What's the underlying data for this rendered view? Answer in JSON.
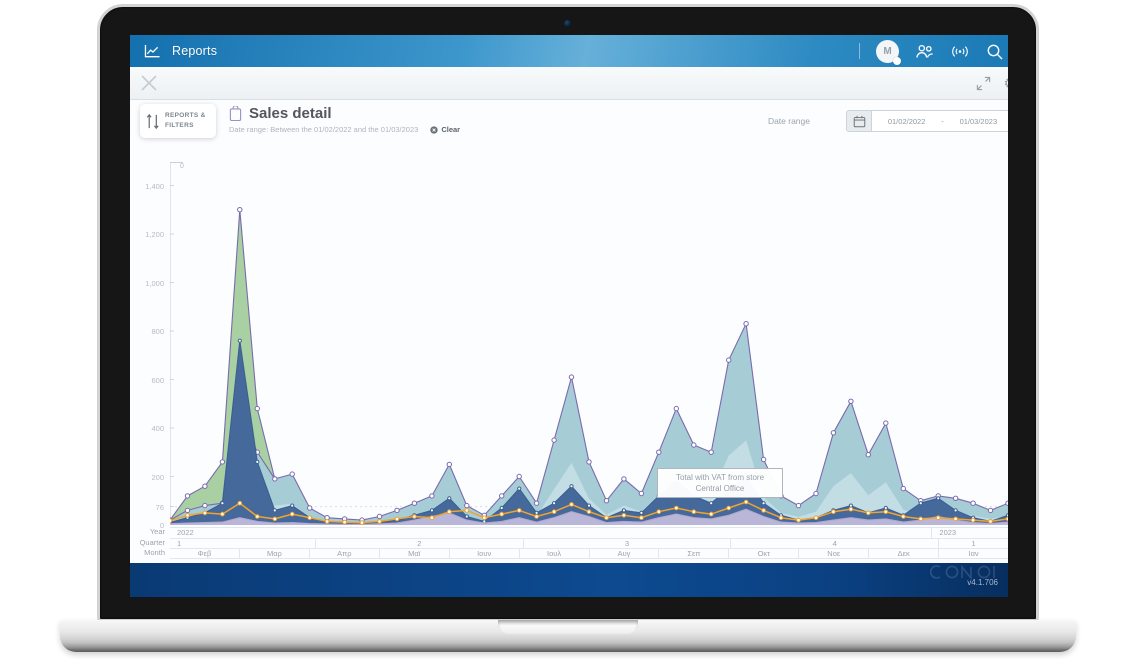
{
  "header": {
    "app_title": "Reports",
    "avatar_initial": "M"
  },
  "panel": {
    "filters_button": {
      "line1": "REPORTS &",
      "line2": "FILTERS"
    },
    "title": "Sales detail",
    "subtitle": "Date range: Between the 01/02/2022 and the 01/03/2023",
    "clear_label": "Clear",
    "date_range_label": "Date range",
    "date_from": "01/02/2022",
    "date_separator": "-",
    "date_to": "01/03/2023"
  },
  "tooltip": {
    "line1": "Total with VAT from store",
    "line2": "Central Office"
  },
  "footer": {
    "version": "v4.1.706"
  },
  "colors": {
    "header_blue": "#2d8ac2",
    "footer_blue": "#0d4a90",
    "accent_purple": "#7a6aae",
    "area_green": "#a8d0a2",
    "area_teal": "#a6cdd6",
    "area_blue": "#46699b",
    "area_lavender": "#c6bfdf",
    "line_orange": "#f3a32b"
  },
  "chart_data": {
    "type": "area",
    "title": "Sales detail",
    "ylim": [
      0,
      1505
    ],
    "grid": "dashed reference line at 76 only",
    "legend": "none (tooltip identifies series: Total with VAT from store Central Office)",
    "y_axis": {
      "top_label": "0",
      "dashed_ref": 76,
      "ticks": [
        {
          "v": 1400,
          "label": "1,400"
        },
        {
          "v": 1200,
          "label": "1,200"
        },
        {
          "v": 1000,
          "label": "1,000"
        },
        {
          "v": 800,
          "label": "800"
        },
        {
          "v": 600,
          "label": "600"
        },
        {
          "v": 400,
          "label": "400"
        },
        {
          "v": 200,
          "label": "200"
        },
        {
          "v": 76,
          "label": "76"
        },
        {
          "v": 0,
          "label": "0"
        }
      ]
    },
    "x_axis": {
      "row_titles": [
        "Year",
        "Quarter",
        "Month"
      ],
      "year_cells": [
        {
          "label": "2022",
          "span": 11,
          "align": "left"
        },
        {
          "label": "2023",
          "span": 1,
          "align": "left"
        }
      ],
      "quarter_cells": [
        {
          "label": "1",
          "span": 2,
          "align": "left"
        },
        {
          "label": "2",
          "span": 3
        },
        {
          "label": "3",
          "span": 3
        },
        {
          "label": "4",
          "span": 3
        },
        {
          "label": "1",
          "span": 1
        }
      ],
      "month_labels": [
        "Φεβ",
        "Μαρ",
        "Απρ",
        "Μαϊ",
        "Ιουν",
        "Ιουλ",
        "Αυγ",
        "Σεπ",
        "Οκτ",
        "Νοε",
        "Δεκ",
        "Ιαν"
      ]
    },
    "series": [
      {
        "id": "area-green",
        "type": "area",
        "fill": "#a8d0a2",
        "stroke": "#7a6aae",
        "markers": 6,
        "values": [
          20,
          120,
          160,
          260,
          1300,
          480,
          190,
          172,
          57,
          25,
          21,
          16,
          29,
          49,
          74,
          98,
          205,
          66,
          33,
          98,
          164,
          74,
          287,
          500,
          213,
          82,
          156,
          107,
          246,
          394,
          271,
          246,
          558,
          681,
          221,
          98,
          66,
          107,
          312,
          418,
          238,
          344,
          123,
          82,
          98,
          90,
          74,
          49,
          74
        ]
      },
      {
        "id": "area-teal",
        "type": "area",
        "fill": "#a6cdd6",
        "stroke": "#7a6aae",
        "markers": "all",
        "values": [
          20,
          60,
          80,
          90,
          460,
          300,
          190,
          210,
          70,
          30,
          25,
          20,
          35,
          60,
          90,
          120,
          250,
          80,
          40,
          120,
          200,
          90,
          350,
          610,
          260,
          100,
          190,
          130,
          300,
          480,
          330,
          300,
          680,
          830,
          270,
          120,
          80,
          130,
          380,
          510,
          290,
          420,
          150,
          100,
          120,
          110,
          90,
          60,
          90
        ]
      },
      {
        "id": "area-light-inner",
        "type": "area",
        "fill": "#c8dfe7",
        "opacity": 0.85,
        "values": [
          8,
          25,
          34,
          38,
          193,
          126,
          80,
          88,
          29,
          13,
          11,
          8,
          15,
          25,
          38,
          50,
          105,
          34,
          17,
          50,
          84,
          38,
          147,
          256,
          109,
          42,
          80,
          55,
          126,
          202,
          139,
          126,
          286,
          349,
          113,
          50,
          34,
          55,
          160,
          214,
          122,
          176,
          63,
          42,
          50,
          46,
          38,
          25,
          38
        ]
      },
      {
        "id": "area-blue",
        "type": "area",
        "fill": "#46699b",
        "stroke": "#3c5f93",
        "markers": "all",
        "values": [
          10,
          30,
          50,
          90,
          760,
          260,
          60,
          80,
          30,
          12,
          8,
          6,
          12,
          20,
          40,
          60,
          110,
          35,
          15,
          70,
          150,
          50,
          90,
          160,
          80,
          30,
          60,
          50,
          120,
          185,
          120,
          90,
          150,
          200,
          90,
          40,
          20,
          30,
          60,
          80,
          50,
          70,
          40,
          90,
          110,
          60,
          30,
          15,
          40
        ]
      },
      {
        "id": "area-lavender",
        "type": "area",
        "fill": "#c6bfdf",
        "opacity": 0.9,
        "stroke": "#b2a7d2",
        "values": [
          5,
          8,
          10,
          12,
          30,
          15,
          8,
          10,
          6,
          4,
          3,
          3,
          5,
          8,
          20,
          35,
          50,
          20,
          8,
          15,
          30,
          12,
          30,
          55,
          35,
          10,
          15,
          12,
          30,
          45,
          30,
          25,
          40,
          65,
          35,
          12,
          8,
          10,
          20,
          30,
          20,
          25,
          12,
          20,
          35,
          20,
          10,
          6,
          12
        ]
      },
      {
        "id": "line-orange",
        "type": "line",
        "stroke": "#f3a32b",
        "markers": "all",
        "values": [
          18,
          40,
          50,
          45,
          90,
          35,
          25,
          45,
          30,
          15,
          12,
          10,
          15,
          25,
          35,
          30,
          55,
          60,
          30,
          45,
          60,
          35,
          55,
          85,
          55,
          30,
          40,
          30,
          55,
          70,
          55,
          45,
          70,
          95,
          60,
          30,
          20,
          30,
          55,
          65,
          50,
          55,
          35,
          25,
          30,
          25,
          20,
          15,
          25
        ]
      }
    ]
  }
}
